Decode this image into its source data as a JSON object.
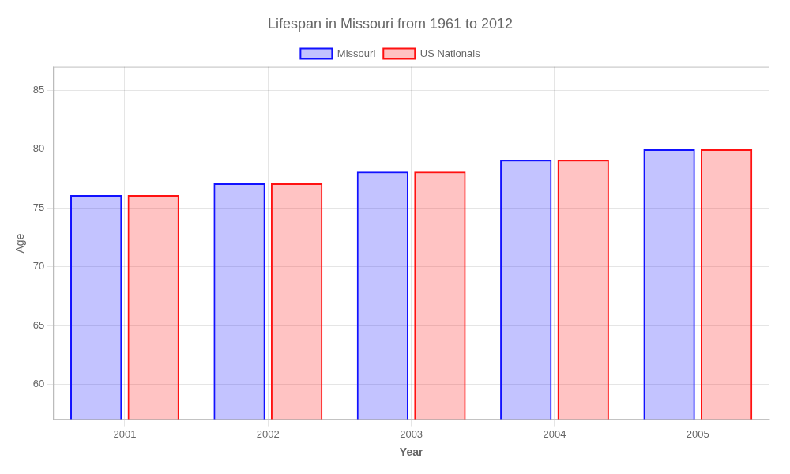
{
  "chart_data": {
    "type": "bar",
    "title": "Lifespan in Missouri from 1961 to 2012",
    "x_label": "Year",
    "y_label": "Age",
    "categories": [
      "2001",
      "2002",
      "2003",
      "2004",
      "2005"
    ],
    "series": [
      {
        "name": "Missouri",
        "color": "#1111ff",
        "values": [
          76.1,
          77.1,
          78.1,
          79.1,
          80.0
        ]
      },
      {
        "name": "US Nationals",
        "color": "#ff1111",
        "values": [
          76.1,
          77.1,
          78.1,
          79.1,
          80.0
        ]
      }
    ],
    "ylim": [
      57,
      87
    ],
    "yticks": [
      60,
      65,
      70,
      75,
      80,
      85
    ],
    "grid": true,
    "legend": "top"
  }
}
